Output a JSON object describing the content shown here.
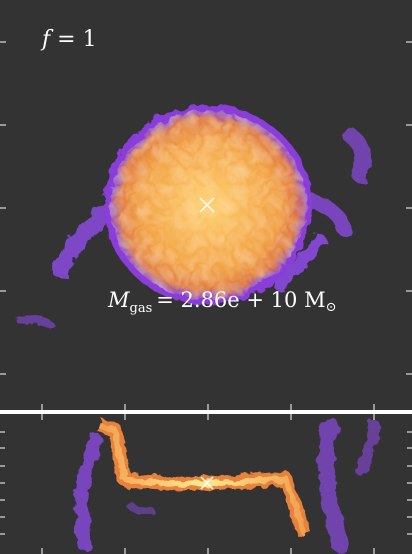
{
  "panel": {
    "label": {
      "symbol": "f",
      "rest": "= 1"
    },
    "annotation": {
      "symbol": "M",
      "subscript": "gas",
      "rest": "= 2.86e + 10 M",
      "sun": "⊙"
    }
  }
}
